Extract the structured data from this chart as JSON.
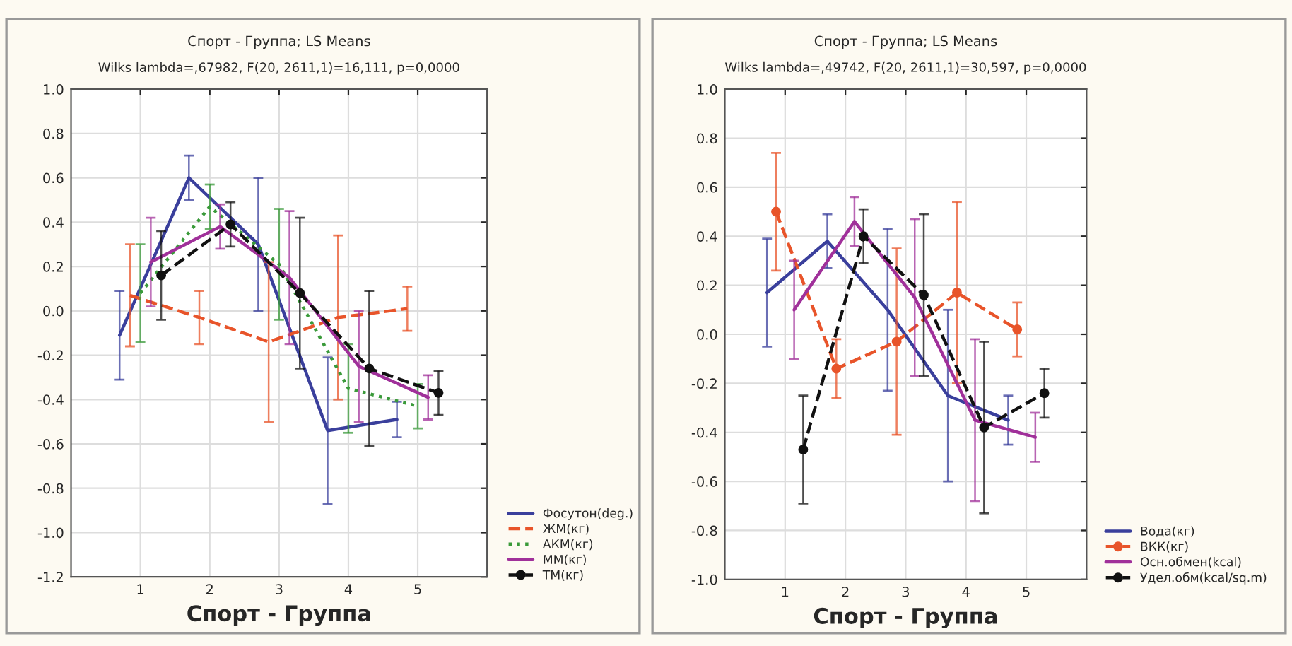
{
  "chart_data": [
    {
      "type": "line",
      "title": "Спорт - Группа; LS Means",
      "subtitle": "Wilks lambda=,67982, F(20, 2611,1)=16,111, p=0,0000",
      "xlabel": "Спорт - Группа",
      "xlim": [
        0,
        6
      ],
      "xticks": [
        1,
        2,
        3,
        4,
        5
      ],
      "ylim": [
        -1.2,
        1.0
      ],
      "yticks": [
        -1.2,
        {
          "value": -1,
          "label": "-1.0"
        },
        -0.8,
        -0.6,
        -0.4,
        -0.2,
        {
          "value": 0,
          "label": "0.0"
        },
        0.2,
        0.4,
        0.6,
        0.8,
        {
          "value": 1,
          "label": "1.0"
        }
      ],
      "grid": true,
      "legend": "bottom right",
      "series": [
        {
          "name": "Фосутон(deg.)",
          "color": "#3a3f9c",
          "line_style": "solid",
          "marker": "none",
          "x": [
            0.7,
            1.7,
            2.7,
            3.7,
            4.7
          ],
          "values": [
            -0.11,
            0.6,
            0.3,
            -0.54,
            -0.49
          ],
          "errors": [
            0.2,
            0.1,
            0.3,
            0.33,
            0.08
          ]
        },
        {
          "name": "ЖМ(кг)",
          "color": "#e8542a",
          "line_style": "dashed",
          "marker": "none",
          "x": [
            0.85,
            1.85,
            2.85,
            3.85,
            4.85
          ],
          "values": [
            0.07,
            -0.03,
            -0.14,
            -0.03,
            0.01
          ],
          "errors": [
            0.23,
            0.12,
            0.36,
            0.37,
            0.1
          ]
        },
        {
          "name": "АКМ(кг)",
          "color": "#3a9a3a",
          "line_style": "dotted",
          "marker": "none",
          "x": [
            1.0,
            2.0,
            3.0,
            4.0,
            5.0
          ],
          "values": [
            0.08,
            0.47,
            0.21,
            -0.35,
            -0.43
          ],
          "errors": [
            0.22,
            0.1,
            0.25,
            0.2,
            0.1
          ]
        },
        {
          "name": "ММ(кг)",
          "color": "#a0309a",
          "line_style": "solid",
          "marker": "none",
          "x": [
            1.15,
            2.15,
            3.15,
            4.15,
            5.15
          ],
          "values": [
            0.22,
            0.38,
            0.15,
            -0.25,
            -0.39
          ],
          "errors": [
            0.2,
            0.1,
            0.3,
            0.25,
            0.1
          ]
        },
        {
          "name": "ТМ(кг)",
          "color": "#111111",
          "line_style": "dashed",
          "marker": "circle",
          "x": [
            1.3,
            2.3,
            3.3,
            4.3,
            5.3
          ],
          "values": [
            0.16,
            0.39,
            0.08,
            -0.26,
            -0.37
          ],
          "errors": [
            0.2,
            0.1,
            0.34,
            0.35,
            0.1
          ]
        }
      ]
    },
    {
      "type": "line",
      "title": "Спорт - Группа; LS Means",
      "subtitle": "Wilks lambda=,49742, F(20, 2611,1)=30,597, p=0,0000",
      "xlabel": "Спорт - Группа",
      "xlim": [
        0,
        6
      ],
      "xticks": [
        1,
        2,
        3,
        4,
        5
      ],
      "ylim": [
        -1.0,
        1.0
      ],
      "yticks": [
        {
          "value": -1,
          "label": "-1.0"
        },
        -0.8,
        -0.6,
        -0.4,
        -0.2,
        {
          "value": 0,
          "label": "0.0"
        },
        0.2,
        0.4,
        0.6,
        0.8,
        {
          "value": 1,
          "label": "1.0"
        }
      ],
      "grid": true,
      "legend": "bottom right",
      "series": [
        {
          "name": "Вода(кг)",
          "color": "#3a3f9c",
          "line_style": "solid",
          "marker": "none",
          "x": [
            0.7,
            1.7,
            2.7,
            3.7,
            4.7
          ],
          "values": [
            0.17,
            0.38,
            0.1,
            -0.25,
            -0.35
          ],
          "errors": [
            0.22,
            0.11,
            0.33,
            0.35,
            0.1
          ]
        },
        {
          "name": "ВКК(кг)",
          "color": "#e8542a",
          "line_style": "dashed",
          "marker": "circle",
          "x": [
            0.85,
            1.85,
            2.85,
            3.85,
            4.85
          ],
          "values": [
            0.5,
            -0.14,
            -0.03,
            0.17,
            0.02
          ],
          "errors": [
            0.24,
            0.12,
            0.38,
            0.37,
            0.11
          ]
        },
        {
          "name": "Осн.обмен(kcal)",
          "color": "#a0309a",
          "line_style": "solid",
          "marker": "none",
          "x": [
            1.15,
            2.15,
            3.15,
            4.15,
            5.15
          ],
          "values": [
            0.1,
            0.46,
            0.15,
            -0.35,
            -0.42
          ],
          "errors": [
            0.2,
            0.1,
            0.32,
            0.33,
            0.1
          ]
        },
        {
          "name": "Удел.обм(kcal/sq.m)",
          "color": "#111111",
          "line_style": "dashed",
          "marker": "circle",
          "x": [
            1.3,
            2.3,
            3.3,
            4.3,
            5.3
          ],
          "values": [
            -0.47,
            0.4,
            0.16,
            -0.38,
            -0.24
          ],
          "errors": [
            0.22,
            0.11,
            0.33,
            0.35,
            0.1
          ]
        }
      ]
    }
  ]
}
